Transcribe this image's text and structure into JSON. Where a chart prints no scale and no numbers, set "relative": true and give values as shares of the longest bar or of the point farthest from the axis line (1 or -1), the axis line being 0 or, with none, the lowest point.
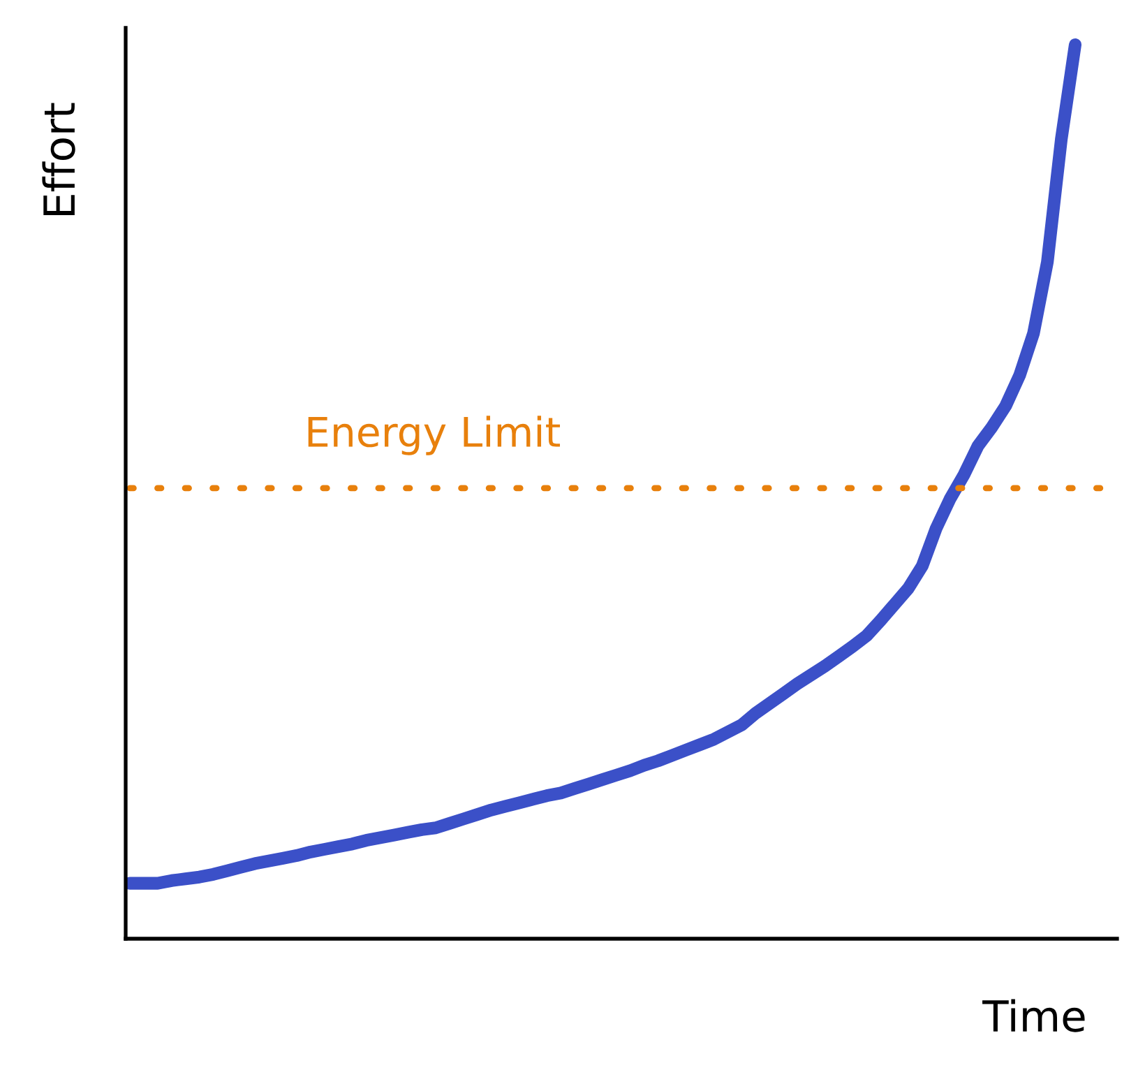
{
  "chart_data": {
    "type": "line",
    "relative": true,
    "xlabel": "Time",
    "ylabel": "Effort",
    "categories": [
      null,
      null,
      null,
      null,
      null,
      null,
      null,
      null,
      null,
      null,
      null,
      null,
      null,
      null,
      null,
      null,
      null,
      null,
      null,
      null,
      null,
      null,
      null,
      null,
      null,
      null,
      null,
      null,
      null,
      null,
      null,
      null,
      null,
      null,
      null,
      null,
      null,
      null,
      null,
      null,
      null,
      null,
      null,
      null,
      null,
      null,
      null,
      null,
      null,
      null,
      null,
      null,
      null,
      null,
      null,
      null,
      null,
      null,
      null,
      null,
      null,
      null,
      null,
      null,
      null,
      null,
      null,
      null,
      null
    ],
    "series": [
      {
        "color": "#3b50c8",
        "values": [
          0.062,
          0.062,
          0.062,
          0.065,
          0.067,
          0.069,
          0.072,
          0.076,
          0.08,
          0.084,
          0.087,
          0.09,
          0.093,
          0.097,
          0.1,
          0.103,
          0.106,
          0.11,
          0.113,
          0.116,
          0.119,
          0.122,
          0.124,
          0.129,
          0.134,
          0.139,
          0.144,
          0.148,
          0.152,
          0.156,
          0.16,
          0.163,
          0.168,
          0.173,
          0.178,
          0.183,
          0.188,
          0.194,
          0.199,
          0.205,
          0.211,
          0.217,
          0.223,
          0.231,
          0.239,
          0.252,
          0.263,
          0.274,
          0.285,
          0.295,
          0.305,
          0.316,
          0.327,
          0.339,
          0.356,
          0.374,
          0.392,
          0.417,
          0.459,
          0.492,
          0.519,
          0.551,
          0.572,
          0.596,
          0.63,
          0.677,
          0.757,
          0.894,
          1.0
        ]
      }
    ],
    "ref_lines": [
      {
        "axis": "y",
        "value": 0.504,
        "label": "Energy Limit",
        "color": "#e8800c",
        "line_style": "dotted"
      }
    ]
  }
}
